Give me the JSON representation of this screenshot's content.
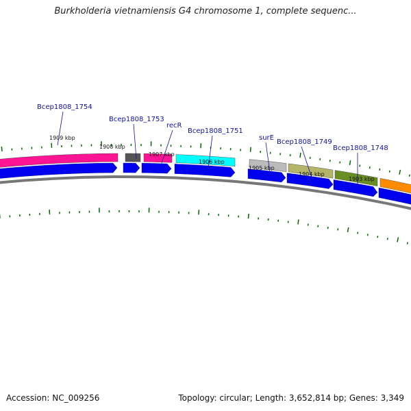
{
  "title": "Burkholderia vietnamiensis G4 chromosome 1, complete sequenc...",
  "footer": {
    "accession": "Accession: NC_009256",
    "topology": "Topology: circular; Length: 3,652,814 bp; Genes: 3,349"
  },
  "colors": {
    "backbone": "#777777",
    "cds": "#0000ee",
    "tick": "#006600",
    "label": "#1010a0"
  },
  "features": [
    {
      "color": "#ff1493"
    },
    {
      "color": "#555555"
    },
    {
      "color": "#ff1493"
    },
    {
      "color": "#00ffff"
    },
    {
      "color": "#bbbbbb"
    },
    {
      "color": "#b5b56a"
    },
    {
      "color": "#6b8e23"
    },
    {
      "color": "#ff8c00"
    }
  ],
  "ticks": [
    {
      "label": "1909 kbp"
    },
    {
      "label": "1908 kbp"
    },
    {
      "label": "1907 kbp"
    },
    {
      "label": "1906 kbp"
    },
    {
      "label": "1905 kbp"
    },
    {
      "label": "1904 kbp"
    },
    {
      "label": "1903 kbp"
    }
  ],
  "gene_labels": [
    {
      "text": "Bcep1808_1754"
    },
    {
      "text": "Bcep1808_1753"
    },
    {
      "text": "recR"
    },
    {
      "text": "Bcep1808_1751"
    },
    {
      "text": "surE"
    },
    {
      "text": "Bcep1808_1749"
    },
    {
      "text": "Bcep1808_1748"
    }
  ]
}
